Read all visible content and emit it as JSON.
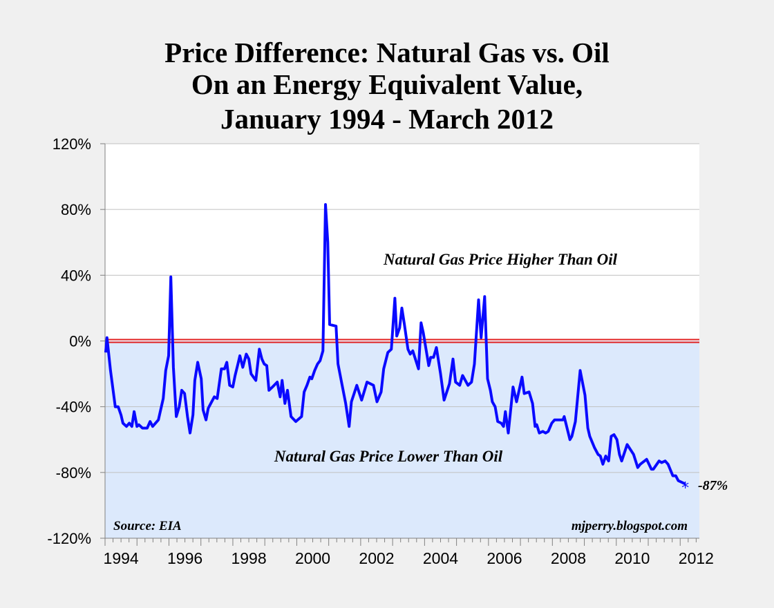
{
  "chart_data": {
    "type": "line",
    "title": [
      "Price Difference: Natural Gas vs. Oil",
      "On an Energy Equivalent Value,",
      "January 1994 - March 2012"
    ],
    "xlabel": "",
    "ylabel": "",
    "xlim": [
      1994,
      2012.6
    ],
    "ylim": [
      -120,
      120
    ],
    "y_ticks": [
      "120%",
      "80%",
      "40%",
      "0%",
      "-40%",
      "-80%",
      "-120%"
    ],
    "y_tick_values": [
      120,
      80,
      40,
      0,
      -40,
      -80,
      -120
    ],
    "x_ticks": [
      "1994",
      "1996",
      "1998",
      "2000",
      "2002",
      "2004",
      "2006",
      "2008",
      "2010",
      "2012"
    ],
    "grid": true,
    "reference_line": {
      "value": 0,
      "color": "#e02020"
    },
    "shaded_below_zero_color": "#dce9fc",
    "series": [
      {
        "color": "#0a0aff",
        "points": [
          [
            1994.02,
            -7
          ],
          [
            1994.06,
            2
          ],
          [
            1994.17,
            -18
          ],
          [
            1994.32,
            -40
          ],
          [
            1994.41,
            -40
          ],
          [
            1994.5,
            -45
          ],
          [
            1994.56,
            -50
          ],
          [
            1994.67,
            -52
          ],
          [
            1994.76,
            -50
          ],
          [
            1994.84,
            -52
          ],
          [
            1994.91,
            -43
          ],
          [
            1995.0,
            -52
          ],
          [
            1995.06,
            -51
          ],
          [
            1995.17,
            -53
          ],
          [
            1995.32,
            -53
          ],
          [
            1995.41,
            -49
          ],
          [
            1995.49,
            -52
          ],
          [
            1995.67,
            -48
          ],
          [
            1995.82,
            -35
          ],
          [
            1995.9,
            -18
          ],
          [
            1995.99,
            -9
          ],
          [
            1996.06,
            39
          ],
          [
            1996.14,
            -16
          ],
          [
            1996.23,
            -46
          ],
          [
            1996.32,
            -40
          ],
          [
            1996.4,
            -30
          ],
          [
            1996.49,
            -32
          ],
          [
            1996.58,
            -46
          ],
          [
            1996.66,
            -56
          ],
          [
            1996.75,
            -45
          ],
          [
            1996.81,
            -24
          ],
          [
            1996.9,
            -13
          ],
          [
            1997.01,
            -23
          ],
          [
            1997.07,
            -42
          ],
          [
            1997.16,
            -48
          ],
          [
            1997.23,
            -41
          ],
          [
            1997.31,
            -38
          ],
          [
            1997.42,
            -34
          ],
          [
            1997.51,
            -35
          ],
          [
            1997.64,
            -17
          ],
          [
            1997.74,
            -17
          ],
          [
            1997.81,
            -13
          ],
          [
            1997.9,
            -27
          ],
          [
            1998.0,
            -28
          ],
          [
            1998.07,
            -21
          ],
          [
            1998.16,
            -14
          ],
          [
            1998.22,
            -9
          ],
          [
            1998.31,
            -16
          ],
          [
            1998.42,
            -8
          ],
          [
            1998.5,
            -11
          ],
          [
            1998.57,
            -20
          ],
          [
            1998.72,
            -24
          ],
          [
            1998.83,
            -5
          ],
          [
            1998.91,
            -11
          ],
          [
            1998.98,
            -14
          ],
          [
            1999.06,
            -15
          ],
          [
            1999.13,
            -30
          ],
          [
            1999.24,
            -28
          ],
          [
            1999.39,
            -25
          ],
          [
            1999.48,
            -34
          ],
          [
            1999.54,
            -24
          ],
          [
            1999.63,
            -38
          ],
          [
            1999.71,
            -30
          ],
          [
            1999.82,
            -46
          ],
          [
            1999.97,
            -49
          ],
          [
            2000.15,
            -46
          ],
          [
            2000.23,
            -31
          ],
          [
            2000.32,
            -27
          ],
          [
            2000.41,
            -22
          ],
          [
            2000.47,
            -23
          ],
          [
            2000.56,
            -18
          ],
          [
            2000.65,
            -14
          ],
          [
            2000.73,
            -12
          ],
          [
            2000.82,
            -6
          ],
          [
            2000.9,
            83
          ],
          [
            2000.97,
            60
          ],
          [
            2001.03,
            10
          ],
          [
            2001.23,
            9
          ],
          [
            2001.29,
            -14
          ],
          [
            2001.53,
            -38
          ],
          [
            2001.64,
            -52
          ],
          [
            2001.71,
            -37
          ],
          [
            2001.88,
            -27
          ],
          [
            2002.03,
            -36
          ],
          [
            2002.2,
            -25
          ],
          [
            2002.4,
            -27
          ],
          [
            2002.51,
            -37
          ],
          [
            2002.64,
            -31
          ],
          [
            2002.72,
            -17
          ],
          [
            2002.85,
            -7
          ],
          [
            2002.96,
            -5
          ],
          [
            2003.07,
            26
          ],
          [
            2003.13,
            3
          ],
          [
            2003.22,
            8
          ],
          [
            2003.29,
            20
          ],
          [
            2003.37,
            10
          ],
          [
            2003.48,
            -5
          ],
          [
            2003.55,
            -8
          ],
          [
            2003.63,
            -6
          ],
          [
            2003.81,
            -17
          ],
          [
            2003.89,
            11
          ],
          [
            2003.96,
            5
          ],
          [
            2004.13,
            -15
          ],
          [
            2004.19,
            -10
          ],
          [
            2004.28,
            -10
          ],
          [
            2004.37,
            -4
          ],
          [
            2004.5,
            -20
          ],
          [
            2004.61,
            -36
          ],
          [
            2004.78,
            -26
          ],
          [
            2004.89,
            -11
          ],
          [
            2004.97,
            -25
          ],
          [
            2005.1,
            -27
          ],
          [
            2005.19,
            -21
          ],
          [
            2005.36,
            -27
          ],
          [
            2005.47,
            -25
          ],
          [
            2005.56,
            -14
          ],
          [
            2005.69,
            25
          ],
          [
            2005.77,
            2
          ],
          [
            2005.88,
            27
          ],
          [
            2005.97,
            -23
          ],
          [
            2006.06,
            -30
          ],
          [
            2006.12,
            -37
          ],
          [
            2006.21,
            -40
          ],
          [
            2006.29,
            -49
          ],
          [
            2006.4,
            -50
          ],
          [
            2006.47,
            -52
          ],
          [
            2006.53,
            -43
          ],
          [
            2006.62,
            -56
          ],
          [
            2006.77,
            -28
          ],
          [
            2006.88,
            -37
          ],
          [
            2007.05,
            -22
          ],
          [
            2007.12,
            -32
          ],
          [
            2007.27,
            -31
          ],
          [
            2007.38,
            -38
          ],
          [
            2007.46,
            -52
          ],
          [
            2007.51,
            -51
          ],
          [
            2007.59,
            -56
          ],
          [
            2007.7,
            -55
          ],
          [
            2007.79,
            -56
          ],
          [
            2007.87,
            -55
          ],
          [
            2007.98,
            -50
          ],
          [
            2008.07,
            -48
          ],
          [
            2008.33,
            -48
          ],
          [
            2008.37,
            -46
          ],
          [
            2008.55,
            -60
          ],
          [
            2008.61,
            -58
          ],
          [
            2008.72,
            -49
          ],
          [
            2008.87,
            -18
          ],
          [
            2009.02,
            -33
          ],
          [
            2009.11,
            -53
          ],
          [
            2009.17,
            -58
          ],
          [
            2009.32,
            -65
          ],
          [
            2009.43,
            -69
          ],
          [
            2009.5,
            -70
          ],
          [
            2009.58,
            -75
          ],
          [
            2009.67,
            -70
          ],
          [
            2009.76,
            -73
          ],
          [
            2009.84,
            -58
          ],
          [
            2009.93,
            -57
          ],
          [
            2010.02,
            -60
          ],
          [
            2010.1,
            -69
          ],
          [
            2010.17,
            -73
          ],
          [
            2010.34,
            -63
          ],
          [
            2010.54,
            -69
          ],
          [
            2010.67,
            -77
          ],
          [
            2010.75,
            -75
          ],
          [
            2010.95,
            -72
          ],
          [
            2011.1,
            -78
          ],
          [
            2011.16,
            -78
          ],
          [
            2011.34,
            -73
          ],
          [
            2011.42,
            -74
          ],
          [
            2011.53,
            -73
          ],
          [
            2011.62,
            -75
          ],
          [
            2011.77,
            -82
          ],
          [
            2011.86,
            -82
          ],
          [
            2011.94,
            -85
          ],
          [
            2012.16,
            -87
          ]
        ]
      }
    ],
    "annotations": {
      "upper_region": "Natural Gas Price Higher Than Oil",
      "lower_region": "Natural Gas Price Lower Than Oil",
      "last_value": "-87%",
      "source": "Source: EIA",
      "credit": "mjperry.blogspot.com"
    }
  }
}
